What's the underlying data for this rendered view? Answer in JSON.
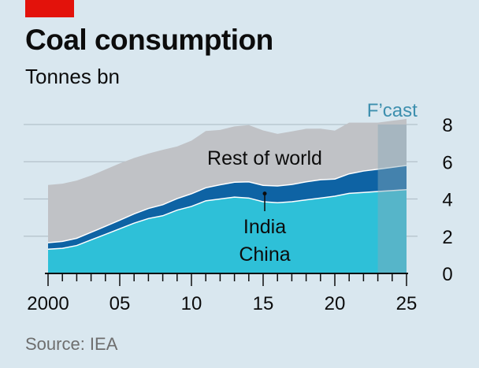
{
  "header": {
    "title": "Coal consumption",
    "subtitle": "Tonnes bn"
  },
  "footer": {
    "source": "Source: IEA"
  },
  "colors": {
    "background": "#d9e7ef",
    "china": "#2ec0d8",
    "india": "#0e63a4",
    "rest_of_world": "#c0c2c6",
    "forecast_shade": "#88a8b8",
    "forecast_label": "#3d8fae",
    "brand_red": "#e3120b"
  },
  "chart_data": {
    "type": "area",
    "stacked": true,
    "title": "Coal consumption",
    "ylabel": "Tonnes bn",
    "xlim": [
      2000,
      2025
    ],
    "ylim": [
      0,
      8
    ],
    "x_ticks": [
      2000,
      2005,
      2010,
      2015,
      2020,
      2025
    ],
    "x_tick_labels": [
      "2000",
      "05",
      "10",
      "15",
      "20",
      "25"
    ],
    "y_ticks": [
      0,
      2,
      4,
      6,
      8
    ],
    "y_tick_labels": [
      "0",
      "2",
      "4",
      "6",
      "8"
    ],
    "forecast_start": 2023,
    "forecast_label": "F’cast",
    "x": [
      2000,
      2001,
      2002,
      2003,
      2004,
      2005,
      2006,
      2007,
      2008,
      2009,
      2010,
      2011,
      2012,
      2013,
      2014,
      2015,
      2016,
      2017,
      2018,
      2019,
      2020,
      2021,
      2022,
      2023,
      2024,
      2025
    ],
    "series": [
      {
        "name": "China",
        "values": [
          1.3,
          1.35,
          1.5,
          1.8,
          2.1,
          2.4,
          2.7,
          2.95,
          3.1,
          3.4,
          3.6,
          3.9,
          4.0,
          4.1,
          4.05,
          3.85,
          3.8,
          3.85,
          3.95,
          4.05,
          4.15,
          4.3,
          4.35,
          4.4,
          4.45,
          4.5
        ]
      },
      {
        "name": "India",
        "values": [
          0.35,
          0.37,
          0.39,
          0.41,
          0.43,
          0.46,
          0.5,
          0.54,
          0.59,
          0.62,
          0.68,
          0.7,
          0.76,
          0.8,
          0.87,
          0.88,
          0.9,
          0.93,
          0.97,
          0.98,
          0.92,
          1.05,
          1.15,
          1.2,
          1.25,
          1.3
        ]
      },
      {
        "name": "Rest of world",
        "values": [
          3.1,
          3.1,
          3.1,
          3.05,
          3.05,
          3.05,
          3.0,
          2.95,
          2.95,
          2.8,
          2.85,
          3.05,
          2.95,
          3.0,
          3.05,
          2.95,
          2.8,
          2.85,
          2.85,
          2.75,
          2.6,
          2.75,
          2.6,
          2.5,
          2.5,
          2.5
        ]
      }
    ],
    "annotations": [
      "Rest of world",
      "India",
      "China"
    ]
  }
}
